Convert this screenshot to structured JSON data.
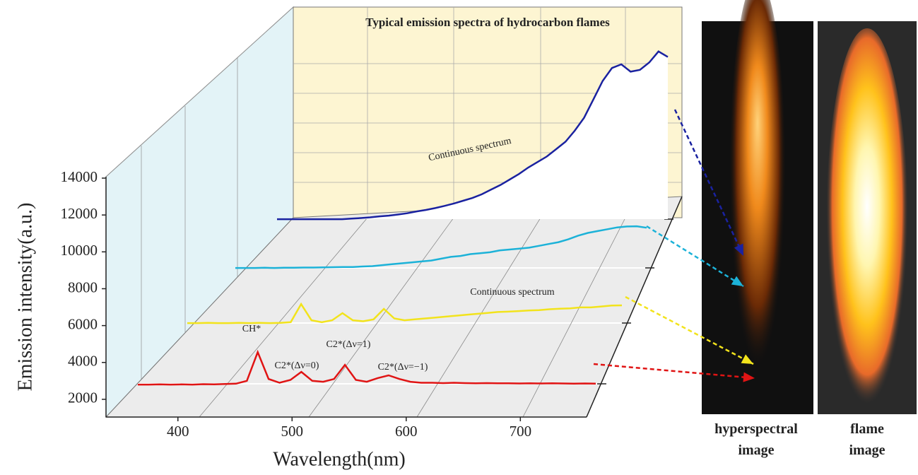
{
  "chart_data": {
    "type": "waterfall",
    "title": "Typical emission spectra of hydrocarbon flames",
    "x_label": "Wavelength(nm)",
    "y_label": "Emission intensity(a.u.)",
    "xlim": [
      337,
      758
    ],
    "xticks": [
      400,
      500,
      600,
      700
    ],
    "ylim": [
      1000,
      14000
    ],
    "yticks": [
      2000,
      4000,
      6000,
      8000,
      10000,
      12000,
      14000
    ],
    "x": [
      340,
      350,
      360,
      370,
      380,
      390,
      400,
      410,
      420,
      430,
      440,
      450,
      460,
      470,
      480,
      490,
      500,
      510,
      520,
      530,
      540,
      550,
      560,
      570,
      580,
      590,
      600,
      610,
      620,
      630,
      640,
      650,
      660,
      670,
      680,
      690,
      700,
      710,
      720,
      730,
      740,
      750,
      760
    ],
    "series": [
      {
        "color": "#e01414",
        "values": [
          2800,
          2800,
          2810,
          2800,
          2810,
          2800,
          2820,
          2810,
          2830,
          2850,
          3000,
          4560,
          3100,
          2900,
          3050,
          3490,
          3000,
          2950,
          3100,
          3870,
          3050,
          2950,
          3150,
          3300,
          3100,
          2950,
          2900,
          2900,
          2880,
          2900,
          2880,
          2870,
          2880,
          2870,
          2870,
          2860,
          2870,
          2860,
          2870,
          2860,
          2850,
          2860,
          2850
        ]
      },
      {
        "color": "#f2e31c",
        "values": [
          2800,
          2800,
          2810,
          2800,
          2800,
          2810,
          2800,
          2810,
          2800,
          2810,
          2850,
          3830,
          2950,
          2850,
          2950,
          3340,
          2950,
          2900,
          3000,
          3570,
          3050,
          2950,
          3000,
          3050,
          3100,
          3150,
          3200,
          3250,
          3300,
          3350,
          3400,
          3420,
          3450,
          3480,
          3500,
          3550,
          3580,
          3600,
          3650,
          3650,
          3700,
          3750,
          3760
        ]
      },
      {
        "color": "#1cb2d8",
        "values": [
          2800,
          2800,
          2800,
          2810,
          2800,
          2810,
          2810,
          2820,
          2820,
          2830,
          2840,
          2850,
          2850,
          2880,
          2900,
          2950,
          3000,
          3050,
          3100,
          3150,
          3200,
          3300,
          3400,
          3450,
          3550,
          3600,
          3650,
          3750,
          3800,
          3850,
          3900,
          4000,
          4100,
          4200,
          4350,
          4550,
          4700,
          4800,
          4900,
          5000,
          5050,
          5060,
          4980
        ]
      },
      {
        "color": "#1a22a0",
        "values": [
          2800,
          2800,
          2800,
          2800,
          2800,
          2800,
          2800,
          2800,
          2830,
          2860,
          2900,
          2950,
          2990,
          3050,
          3120,
          3220,
          3300,
          3400,
          3520,
          3650,
          3800,
          3950,
          4150,
          4400,
          4650,
          4950,
          5250,
          5600,
          5900,
          6200,
          6600,
          7000,
          7600,
          8300,
          9300,
          10300,
          11000,
          11200,
          10800,
          10900,
          11300,
          11900,
          11600
        ]
      }
    ],
    "annotations": [
      "CH*",
      "C2*(Δν=0)",
      "C2*(Δν=1)",
      "C2*(Δν=−1)",
      "Continuous spectrum",
      "Continuous spectrum"
    ],
    "image_labels": [
      "hyperspectral image",
      "flame image"
    ]
  }
}
